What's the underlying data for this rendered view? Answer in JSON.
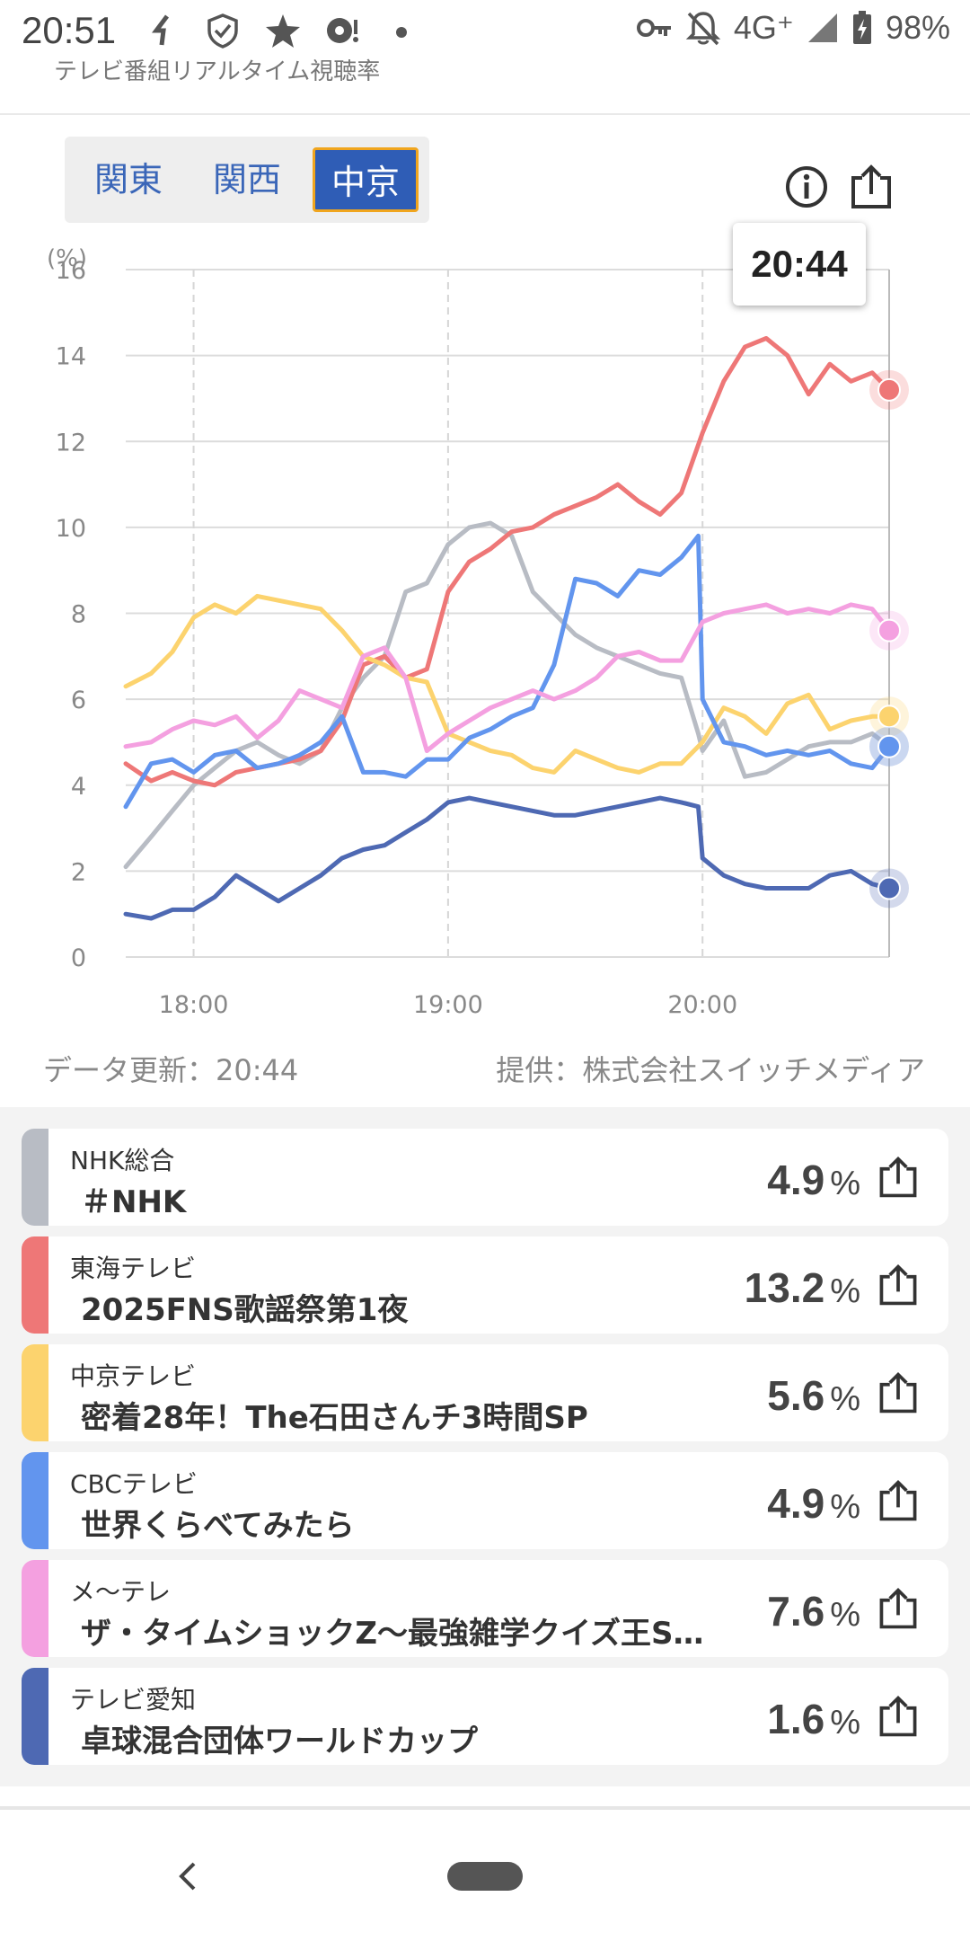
{
  "status_bar": {
    "time": "20:51",
    "network": "4G⁺",
    "battery": "98%",
    "icons": [
      "signal-icon-small",
      "shield-check-icon",
      "star-icon",
      "sync-icon",
      "dot-icon",
      "key-icon",
      "bell-off-icon",
      "cell-signal-icon",
      "battery-charging-icon"
    ]
  },
  "app": {
    "header_title": "テレビ番組リアルタイム視聴率"
  },
  "region_tabs": [
    {
      "label": "関東",
      "active": false
    },
    {
      "label": "関西",
      "active": false
    },
    {
      "label": "中京",
      "active": true
    }
  ],
  "toolbar": {
    "info_icon": "info-icon",
    "share_icon": "share-icon"
  },
  "tooltip_time": "20:44",
  "chart_data": {
    "type": "line",
    "yunit": "(%)",
    "ylim": [
      0,
      16
    ],
    "yticks": [
      "0",
      "2",
      "4",
      "6",
      "8",
      "10",
      "12",
      "14",
      "16"
    ],
    "xticks": [
      "18:00",
      "19:00",
      "20:00"
    ],
    "xlim": [
      "17:44",
      "20:44"
    ],
    "grid": true,
    "series": [
      {
        "name": "NHK総合",
        "color": "#b8bcc4",
        "x": [
          "17:44",
          "17:50",
          "17:55",
          "18:00",
          "18:05",
          "18:10",
          "18:15",
          "18:20",
          "18:25",
          "18:30",
          "18:35",
          "18:40",
          "18:45",
          "18:50",
          "18:55",
          "19:00",
          "19:05",
          "19:10",
          "19:15",
          "19:20",
          "19:25",
          "19:30",
          "19:35",
          "19:40",
          "19:45",
          "19:50",
          "19:55",
          "19:59",
          "20:00",
          "20:05",
          "20:10",
          "20:15",
          "20:20",
          "20:25",
          "20:30",
          "20:35",
          "20:40",
          "20:44"
        ],
        "y": [
          2.1,
          2.8,
          3.4,
          4.0,
          4.4,
          4.8,
          5.0,
          4.7,
          4.5,
          4.8,
          5.8,
          6.5,
          7.0,
          8.5,
          8.7,
          9.6,
          10.0,
          10.1,
          9.8,
          8.5,
          8.0,
          7.5,
          7.2,
          7.0,
          6.8,
          6.6,
          6.5,
          5.2,
          4.8,
          5.5,
          4.2,
          4.3,
          4.6,
          4.9,
          5.0,
          5.0,
          5.2,
          4.9
        ]
      },
      {
        "name": "東海テレビ",
        "color": "#ee7777",
        "x": [
          "17:44",
          "17:50",
          "17:55",
          "18:00",
          "18:05",
          "18:10",
          "18:15",
          "18:20",
          "18:25",
          "18:30",
          "18:35",
          "18:40",
          "18:45",
          "18:50",
          "18:55",
          "19:00",
          "19:05",
          "19:10",
          "19:15",
          "19:20",
          "19:25",
          "19:30",
          "19:35",
          "19:40",
          "19:45",
          "19:50",
          "19:55",
          "20:00",
          "20:05",
          "20:10",
          "20:15",
          "20:20",
          "20:25",
          "20:30",
          "20:35",
          "20:40",
          "20:44"
        ],
        "y": [
          4.5,
          4.1,
          4.3,
          4.1,
          4.0,
          4.3,
          4.4,
          4.5,
          4.6,
          4.8,
          5.5,
          6.8,
          7.0,
          6.5,
          6.7,
          8.5,
          9.2,
          9.5,
          9.9,
          10.0,
          10.3,
          10.5,
          10.7,
          11.0,
          10.6,
          10.3,
          10.8,
          12.2,
          13.4,
          14.2,
          14.4,
          14.0,
          13.1,
          13.8,
          13.4,
          13.6,
          13.2
        ]
      },
      {
        "name": "中京テレビ",
        "color": "#fcd36e",
        "x": [
          "17:44",
          "17:50",
          "17:55",
          "18:00",
          "18:05",
          "18:10",
          "18:15",
          "18:20",
          "18:25",
          "18:30",
          "18:35",
          "18:40",
          "18:45",
          "18:50",
          "18:55",
          "19:00",
          "19:05",
          "19:10",
          "19:15",
          "19:20",
          "19:25",
          "19:30",
          "19:35",
          "19:40",
          "19:45",
          "19:50",
          "19:55",
          "20:00",
          "20:05",
          "20:10",
          "20:15",
          "20:20",
          "20:25",
          "20:30",
          "20:35",
          "20:40",
          "20:44"
        ],
        "y": [
          6.3,
          6.6,
          7.1,
          7.9,
          8.2,
          8.0,
          8.4,
          8.3,
          8.2,
          8.1,
          7.6,
          7.0,
          6.8,
          6.5,
          6.4,
          5.2,
          5.0,
          4.8,
          4.7,
          4.4,
          4.3,
          4.8,
          4.6,
          4.4,
          4.3,
          4.5,
          4.5,
          5.0,
          5.8,
          5.6,
          5.2,
          5.9,
          6.1,
          5.3,
          5.5,
          5.6,
          5.6
        ]
      },
      {
        "name": "CBCテレビ",
        "color": "#6295ee",
        "x": [
          "17:44",
          "17:50",
          "17:55",
          "18:00",
          "18:05",
          "18:10",
          "18:15",
          "18:20",
          "18:25",
          "18:30",
          "18:35",
          "18:40",
          "18:45",
          "18:50",
          "18:55",
          "19:00",
          "19:05",
          "19:10",
          "19:15",
          "19:20",
          "19:25",
          "19:30",
          "19:35",
          "19:40",
          "19:45",
          "19:50",
          "19:55",
          "19:59",
          "20:00",
          "20:05",
          "20:10",
          "20:15",
          "20:20",
          "20:25",
          "20:30",
          "20:35",
          "20:40",
          "20:44"
        ],
        "y": [
          3.5,
          4.5,
          4.6,
          4.3,
          4.7,
          4.8,
          4.4,
          4.5,
          4.7,
          5.0,
          5.6,
          4.3,
          4.3,
          4.2,
          4.6,
          4.6,
          5.1,
          5.3,
          5.6,
          5.8,
          6.8,
          8.8,
          8.7,
          8.4,
          9.0,
          8.9,
          9.3,
          9.8,
          6.0,
          5.0,
          4.9,
          4.7,
          4.8,
          4.7,
          4.8,
          4.5,
          4.4,
          4.9
        ]
      },
      {
        "name": "メ～テレ",
        "color": "#f4a0e0",
        "x": [
          "17:44",
          "17:50",
          "17:55",
          "18:00",
          "18:05",
          "18:10",
          "18:15",
          "18:20",
          "18:25",
          "18:30",
          "18:35",
          "18:40",
          "18:45",
          "18:50",
          "18:55",
          "19:00",
          "19:05",
          "19:10",
          "19:15",
          "19:20",
          "19:25",
          "19:30",
          "19:35",
          "19:40",
          "19:45",
          "19:50",
          "19:55",
          "20:00",
          "20:05",
          "20:10",
          "20:15",
          "20:20",
          "20:25",
          "20:30",
          "20:35",
          "20:40",
          "20:44"
        ],
        "y": [
          4.9,
          5.0,
          5.3,
          5.5,
          5.4,
          5.6,
          5.1,
          5.5,
          6.2,
          6.0,
          5.8,
          7.0,
          7.2,
          6.5,
          4.8,
          5.2,
          5.5,
          5.8,
          6.0,
          6.2,
          6.0,
          6.2,
          6.5,
          7.0,
          7.1,
          6.9,
          6.9,
          7.8,
          8.0,
          8.1,
          8.2,
          8.0,
          8.1,
          8.0,
          8.2,
          8.1,
          7.6
        ]
      },
      {
        "name": "テレビ愛知",
        "color": "#4e69b3",
        "x": [
          "17:44",
          "17:50",
          "17:55",
          "18:00",
          "18:05",
          "18:10",
          "18:15",
          "18:20",
          "18:25",
          "18:30",
          "18:35",
          "18:40",
          "18:45",
          "18:50",
          "18:55",
          "19:00",
          "19:05",
          "19:10",
          "19:15",
          "19:20",
          "19:25",
          "19:30",
          "19:35",
          "19:40",
          "19:45",
          "19:50",
          "19:55",
          "19:59",
          "20:00",
          "20:05",
          "20:10",
          "20:15",
          "20:20",
          "20:25",
          "20:30",
          "20:35",
          "20:40",
          "20:44"
        ],
        "y": [
          1.0,
          0.9,
          1.1,
          1.1,
          1.4,
          1.9,
          1.6,
          1.3,
          1.6,
          1.9,
          2.3,
          2.5,
          2.6,
          2.9,
          3.2,
          3.6,
          3.7,
          3.6,
          3.5,
          3.4,
          3.3,
          3.3,
          3.4,
          3.5,
          3.6,
          3.7,
          3.6,
          3.5,
          2.3,
          1.9,
          1.7,
          1.6,
          1.6,
          1.6,
          1.9,
          2.0,
          1.7,
          1.6
        ]
      }
    ]
  },
  "meta": {
    "updated": "データ更新：20:44",
    "provider": "提供：株式会社スイッチメディア"
  },
  "channels": [
    {
      "station": "NHK総合",
      "program": "＃NHK",
      "rating": "4.9",
      "unit": "%",
      "color": "#b8bcc4"
    },
    {
      "station": "東海テレビ",
      "program": "2025FNS歌謡祭第1夜",
      "rating": "13.2",
      "unit": "%",
      "color": "#ee7777"
    },
    {
      "station": "中京テレビ",
      "program": "密着28年！The石田さんチ3時間SP",
      "rating": "5.6",
      "unit": "%",
      "color": "#fcd36e"
    },
    {
      "station": "CBCテレビ",
      "program": "世界くらべてみたら",
      "rating": "4.9",
      "unit": "%",
      "color": "#6295ee"
    },
    {
      "station": "メ～テレ",
      "program": "ザ・タイムショックZ～最強雑学クイズ王S…",
      "rating": "7.6",
      "unit": "%",
      "color": "#f4a0e0"
    },
    {
      "station": "テレビ愛知",
      "program": "卓球混合団体ワールドカップ",
      "rating": "1.6",
      "unit": "%",
      "color": "#4e69b3"
    }
  ],
  "nav": {
    "back_icon": "back-chevron-icon",
    "home_icon": "home-pill-icon"
  }
}
